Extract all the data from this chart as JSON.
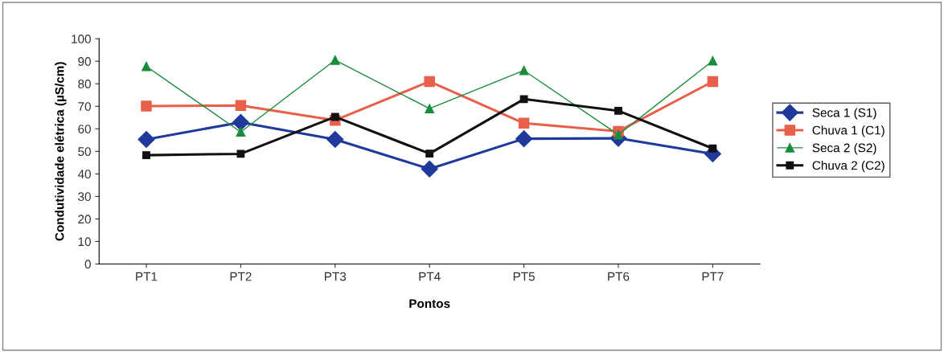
{
  "chart_data": {
    "type": "line",
    "xlabel": "Pontos",
    "ylabel": "Condutividade elétrica (µS/cm)",
    "categories": [
      "PT1",
      "PT2",
      "PT3",
      "PT4",
      "PT5",
      "PT6",
      "PT7"
    ],
    "series": [
      {
        "name": "Seca 1 (S1)",
        "color": "#1f3a9a",
        "marker": "diamond",
        "values": [
          55.3,
          62.9,
          55.3,
          42.2,
          55.6,
          55.8,
          48.9
        ]
      },
      {
        "name": "Chuva 1 (C1)",
        "color": "#e8604c",
        "marker": "square",
        "values": [
          70.1,
          70.4,
          63.8,
          81,
          62.5,
          58.9,
          81
        ]
      },
      {
        "name": "Seca 2 (S2)",
        "color": "#1a8c3c",
        "marker": "triangle",
        "values": [
          87.7,
          58.6,
          90.5,
          69,
          85.9,
          57.4,
          90.2
        ]
      },
      {
        "name": "Chuva 2 (C2)",
        "color": "#111111",
        "marker": "square",
        "values": [
          48.3,
          48.9,
          65.3,
          49,
          73.2,
          68,
          51.3
        ]
      }
    ],
    "ylim": [
      0,
      100
    ],
    "yticks": [
      0,
      10,
      20,
      30,
      40,
      50,
      60,
      70,
      80,
      90,
      100
    ],
    "grid": false,
    "legend": "right"
  }
}
